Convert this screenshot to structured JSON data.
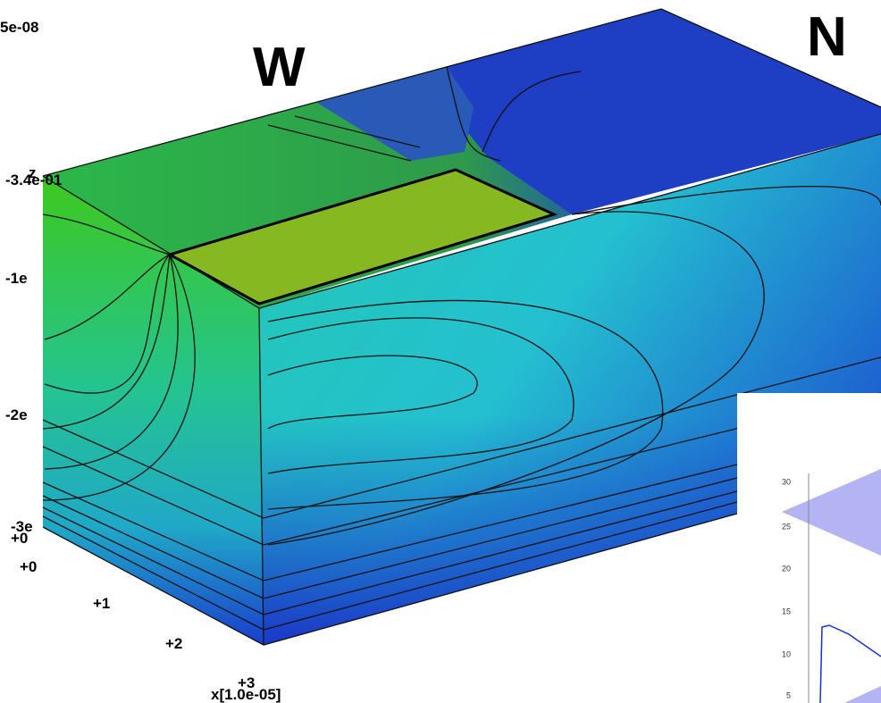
{
  "labels": {
    "scale_top": "5e-08",
    "compass_w": "W",
    "compass_n": "N",
    "z_top": "-3.4e-01",
    "z_axis": "z",
    "z_1": "-1e",
    "z_2": "-2e",
    "z_3": "-3e",
    "z_0": "+0",
    "x_0": "+0",
    "x_1": "+1",
    "x_2": "+2",
    "x_3": "+3",
    "x_axis": "x[1.0e-05]"
  },
  "inset": {
    "yticks": [
      "30",
      "25",
      "20",
      "15",
      "10",
      "5"
    ]
  }
}
